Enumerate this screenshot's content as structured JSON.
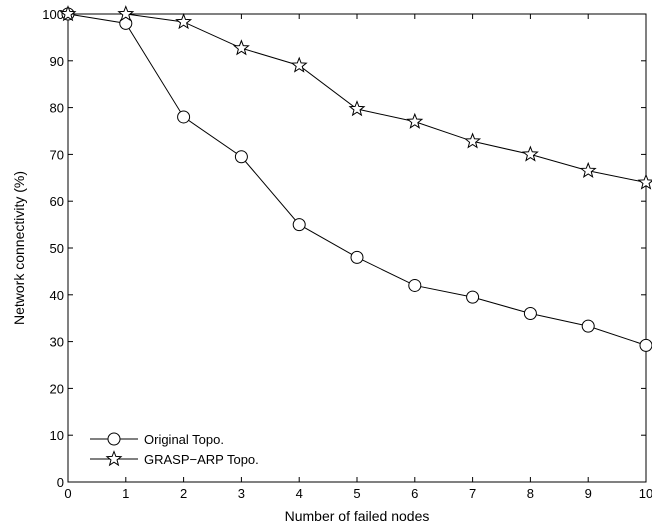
{
  "chart_data": {
    "type": "line",
    "xlabel": "Number of failed nodes",
    "ylabel": "Network connectivity (%)",
    "xlim": [
      0,
      10
    ],
    "ylim": [
      0,
      100
    ],
    "xticks": [
      0,
      1,
      2,
      3,
      4,
      5,
      6,
      7,
      8,
      9,
      10
    ],
    "yticks": [
      0,
      10,
      20,
      30,
      40,
      50,
      60,
      70,
      80,
      90,
      100
    ],
    "grid": false,
    "legend_position": "bottom-left",
    "colors": {
      "line": "#000000",
      "marker_fill": "#ffffff",
      "background": "#ffffff"
    },
    "series": [
      {
        "name": "Original Topo.",
        "marker": "circle",
        "x": [
          0,
          1,
          2,
          3,
          4,
          5,
          6,
          7,
          8,
          9,
          10
        ],
        "values": [
          100,
          98,
          78,
          69.5,
          55,
          48,
          42,
          39.5,
          36,
          33.3,
          29.2
        ]
      },
      {
        "name": "GRASP−ARP Topo.",
        "marker": "star",
        "x": [
          0,
          1,
          2,
          3,
          4,
          5,
          6,
          7,
          8,
          9,
          10
        ],
        "values": [
          100,
          100,
          98.3,
          92.7,
          89,
          79.7,
          77,
          72.8,
          70,
          66.5,
          64
        ]
      }
    ]
  }
}
